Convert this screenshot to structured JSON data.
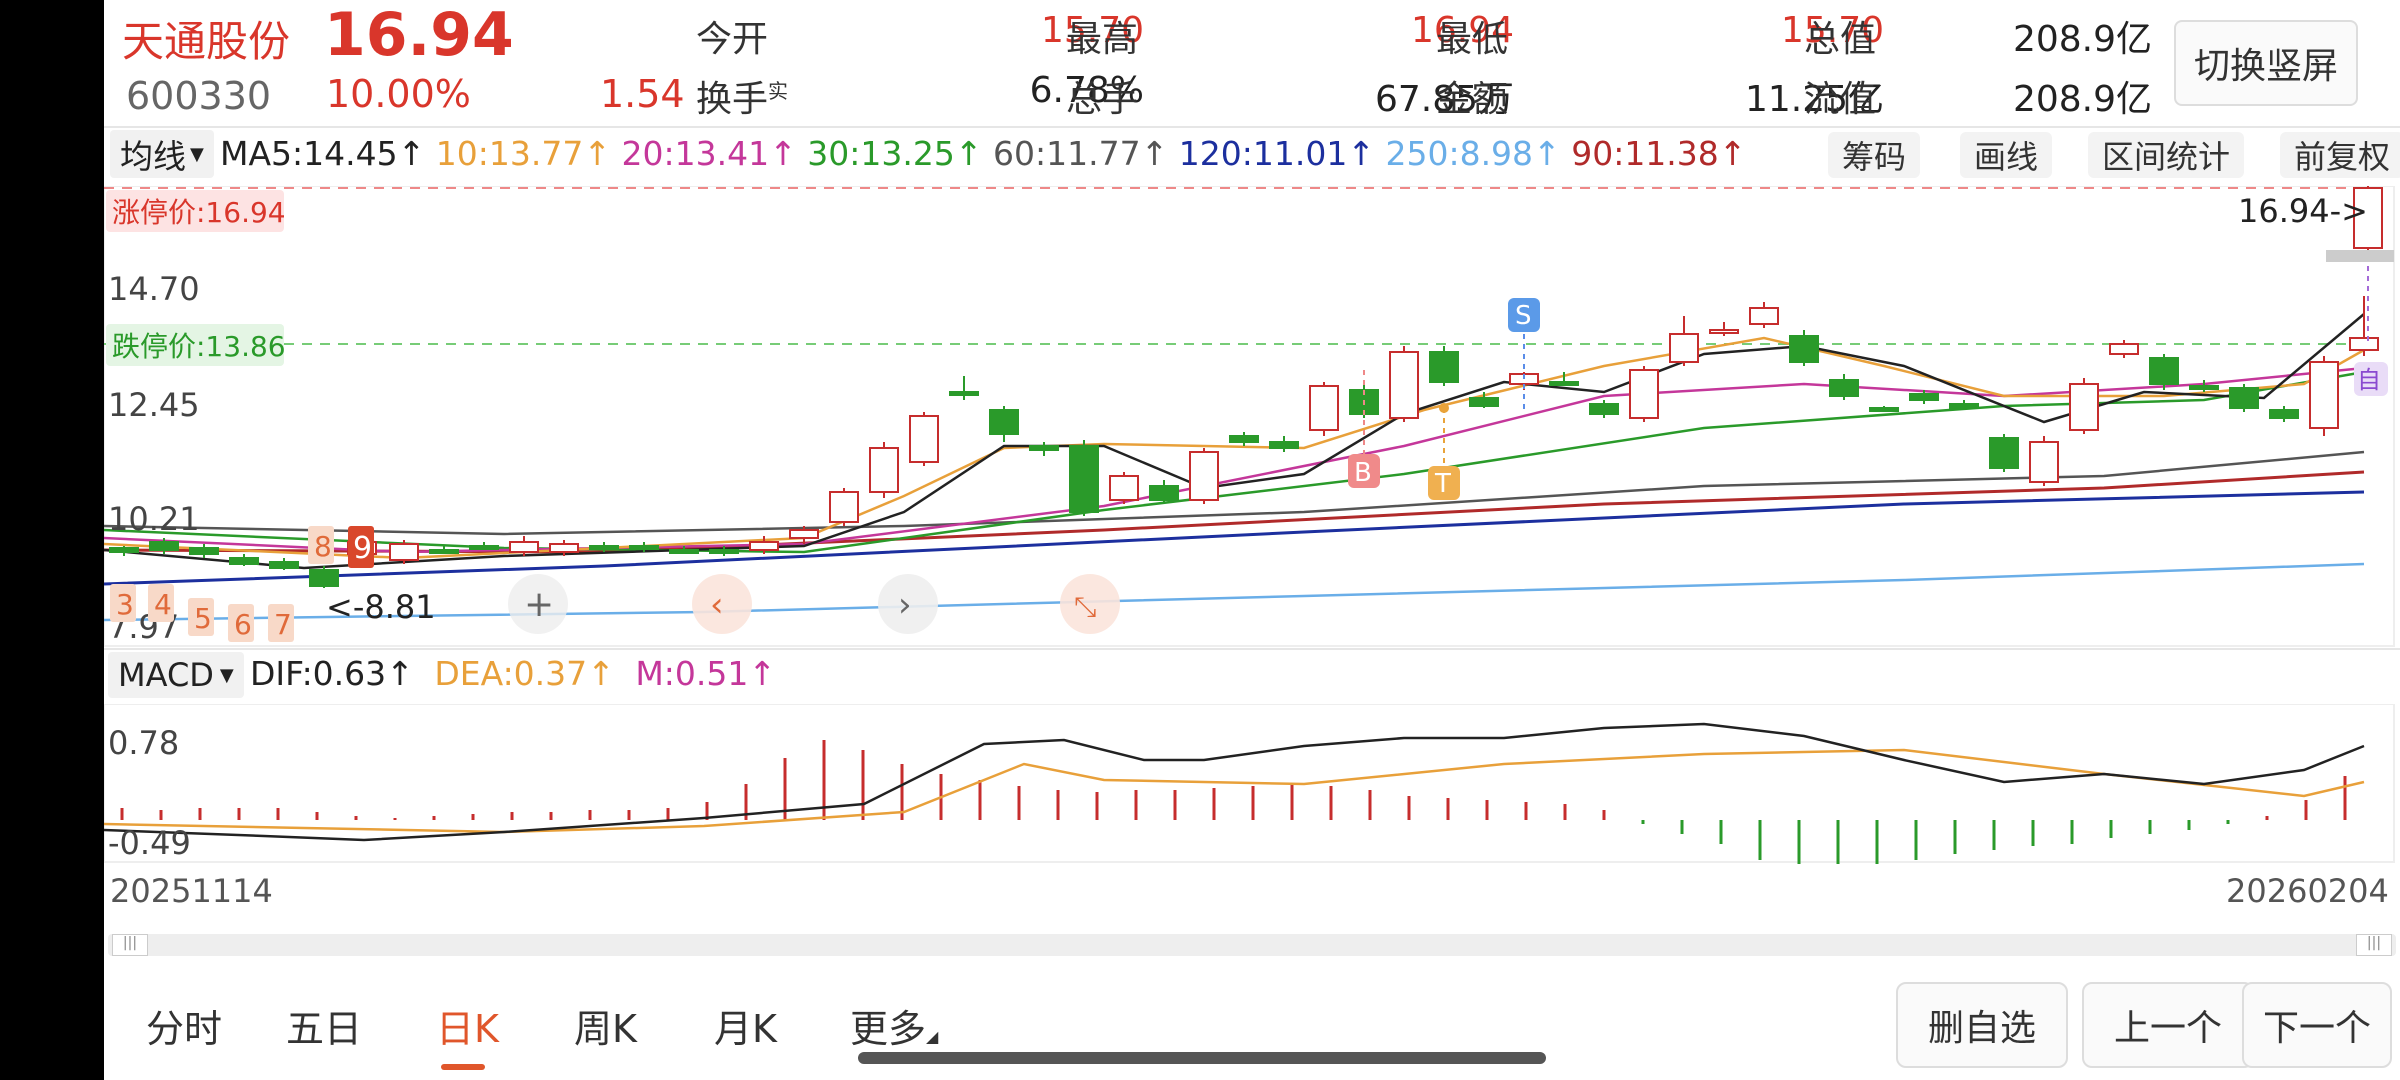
{
  "header": {
    "name": "天通股份",
    "price": "16.94",
    "code": "600330",
    "change_pct": "10.00%",
    "change": "1.54",
    "stats": [
      {
        "label": "今开",
        "value": "15.70"
      },
      {
        "label": "最高",
        "value": "16.94"
      },
      {
        "label": "最低",
        "value": "15.70"
      },
      {
        "label": "总值",
        "value": "208.9亿"
      },
      {
        "label": "换手",
        "label_sup": "实",
        "value": "6.78%"
      },
      {
        "label": "总手",
        "value": "67.85万"
      },
      {
        "label": "金额",
        "value": "11.25亿"
      },
      {
        "label": "流值",
        "value": "208.9亿"
      }
    ],
    "portrait_button": "切换竖屏"
  },
  "ma_bar": {
    "dropdown": "均线",
    "items": [
      {
        "text": "MA5:14.45↑",
        "color": "#222222"
      },
      {
        "text": "10:13.77↑",
        "color": "#e8a03a"
      },
      {
        "text": "20:13.41↑",
        "color": "#c4379a"
      },
      {
        "text": "30:13.25↑",
        "color": "#2a9a2a"
      },
      {
        "text": "60:11.77↑",
        "color": "#555555"
      },
      {
        "text": "120:11.01↑",
        "color": "#1c2f9e"
      },
      {
        "text": "250:8.98↑",
        "color": "#6aaee8"
      },
      {
        "text": "90:11.38↑",
        "color": "#b02a2a"
      }
    ],
    "tools": [
      "筹码",
      "画线",
      "区间统计",
      "前复权"
    ]
  },
  "kline": {
    "limit_up_label": "涨停价:16.94",
    "limit_down_label": "跌停价:13.86",
    "y_labels": [
      "16.94",
      "14.70",
      "12.45",
      "10.21",
      "7.97"
    ],
    "last_price_arrow": "16.94->",
    "low_marker": "<-8.81",
    "nine_count": [
      "3",
      "4",
      "5",
      "6",
      "7",
      "8",
      "9"
    ],
    "trade_markers": {
      "b": "B",
      "t": "T",
      "s": "S",
      "self": "自"
    },
    "colors": {
      "up": "#c62d2d",
      "down": "#2a9a2a"
    }
  },
  "macd_bar": {
    "dropdown": "MACD",
    "items": [
      {
        "text": "DIF:0.63↑",
        "color": "#222222"
      },
      {
        "text": "DEA:0.37↑",
        "color": "#e8a03a"
      },
      {
        "text": "M:0.51↑",
        "color": "#c4379a"
      }
    ],
    "y_labels": [
      "0.78",
      "-0.49"
    ]
  },
  "dates": {
    "start": "20251114",
    "end": "20260204"
  },
  "bottom": {
    "tabs": [
      "分时",
      "五日",
      "日K",
      "周K",
      "月K",
      "更多"
    ],
    "active_tab": 2,
    "buttons": [
      "删自选",
      "上一个",
      "下一个"
    ]
  }
}
